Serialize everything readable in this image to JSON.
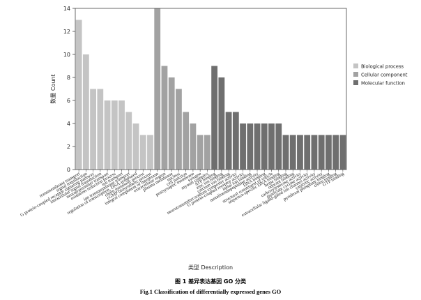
{
  "chart_data": {
    "type": "bar",
    "ylabel": "数量 Count",
    "xlabel": "类型 Description",
    "ylim": [
      0,
      14
    ],
    "yticks": [
      0,
      2,
      4,
      6,
      8,
      10,
      12,
      14
    ],
    "legend_position": "right",
    "grid": false,
    "groups": [
      {
        "name": "Biological process",
        "color": "#c4c4c4",
        "categories": [
          "transmembrane transport",
          "signal transduction",
          "G protein-coupled receptor signaling pathway",
          "intracellular signal transduction",
          "neurotransmitter transport",
          "oxidation-reduction process",
          "ion transport",
          "ion transmembrane transport",
          "regulation of transcription, DNA-templated",
          "chitin metabolic process",
          "cGMP biosynthetic process"
        ],
        "values": [
          13,
          10,
          7,
          7,
          6,
          6,
          6,
          5,
          4,
          3,
          3
        ]
      },
      {
        "name": "Cellular component",
        "color": "#a2a2a2",
        "categories": [
          "integral component of membrane",
          "extracellular region",
          "plasma membrane",
          "nucleus",
          "cell junction",
          "postsynaptic membrane",
          "synapse",
          "myosin complex"
        ],
        "values": [
          14,
          9,
          8,
          7,
          5,
          4,
          3,
          3
        ]
      },
      {
        "name": "Molecular function",
        "color": "#6f6f6f",
        "categories": [
          "ATP binding",
          "zinc ion binding",
          "calcium ion binding",
          "neurotransmitter:sodium symporter activity",
          "G protein-coupled receptor activity",
          "metal ion binding",
          "metalloendopeptidase activity",
          "DNA binding",
          "structural constituent of cuticle",
          "sequence-specific DNA binding",
          "heme binding",
          "odorant binding",
          "carboxylesterase activity",
          "guanylate cyclase activity",
          "extracellular ligand-gated ion channel activity",
          "catalytic activity",
          "pyridoxal phosphate binding",
          "chitin binding",
          "GTP binding"
        ],
        "values": [
          9,
          8,
          5,
          5,
          4,
          4,
          4,
          4,
          4,
          4,
          3,
          3,
          3,
          3,
          3,
          3,
          3,
          3,
          3
        ]
      }
    ]
  },
  "caption": {
    "chinese": "图 1 差异表达基因 GO 分类",
    "english": "Fig.1 Classification of differentially expressed genes GO"
  }
}
